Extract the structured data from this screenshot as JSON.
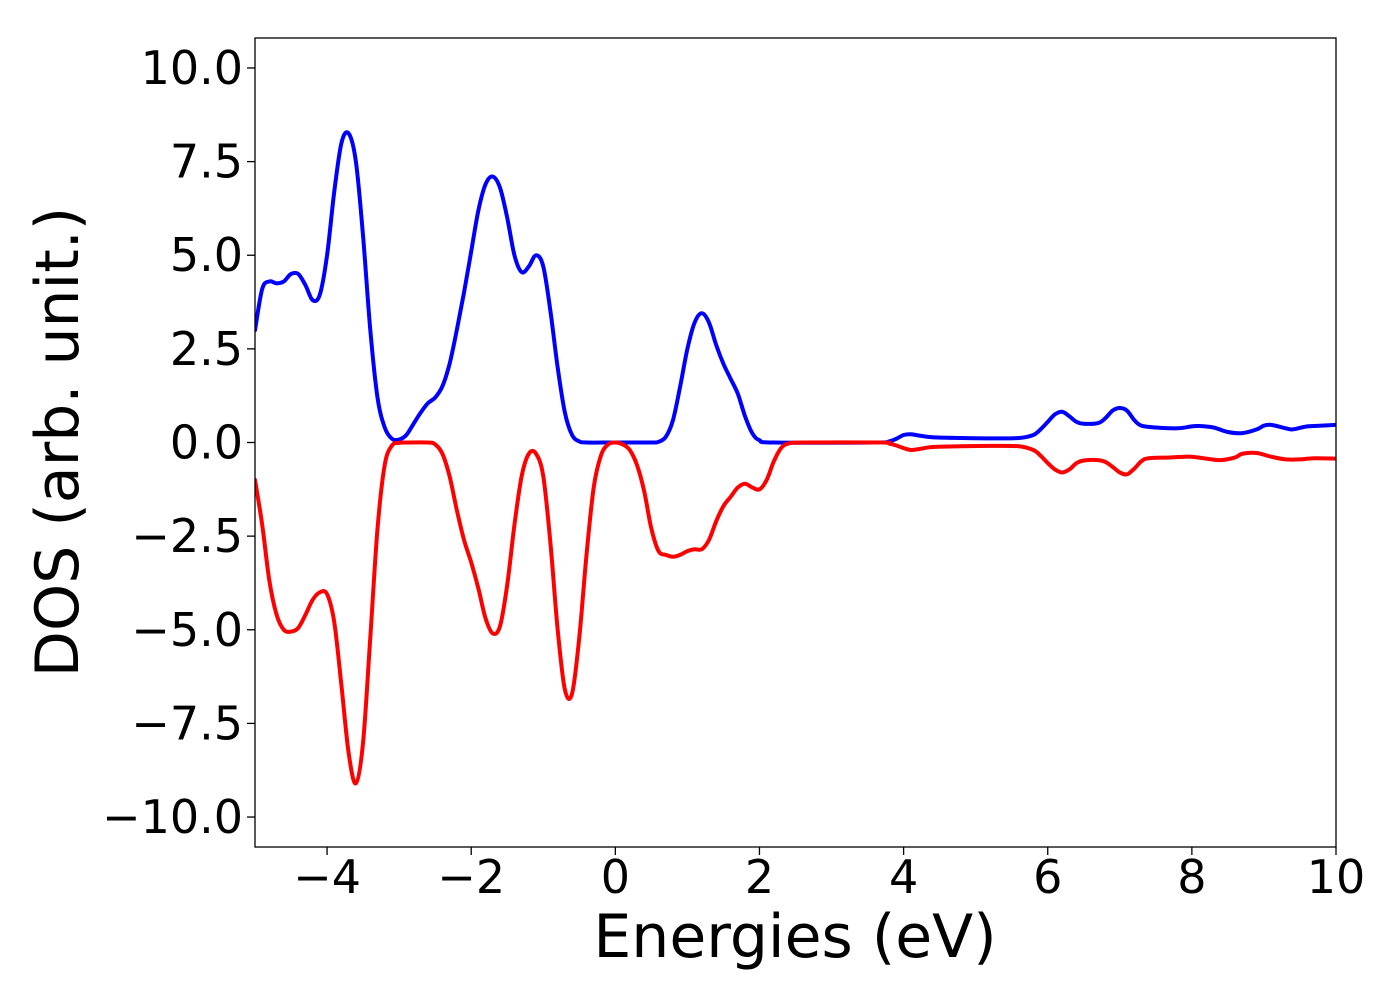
{
  "chart_data": {
    "type": "line",
    "title": "",
    "xlabel": "Energies (eV)",
    "ylabel": "DOS (arb. unit.)",
    "xlim": [
      -5,
      10
    ],
    "ylim": [
      -10.8,
      10.8
    ],
    "xticks": [
      -4,
      -2,
      0,
      2,
      4,
      6,
      8,
      10
    ],
    "xtick_labels": [
      "−4",
      "−2",
      "0",
      "2",
      "4",
      "6",
      "8",
      "10"
    ],
    "yticks": [
      10,
      7.5,
      5,
      2.5,
      0,
      -2.5,
      -5,
      -7.5,
      -10
    ],
    "ytick_labels": [
      "10.0",
      "7.5",
      "5.0",
      "2.5",
      "0.0",
      "−2.5",
      "−5.0",
      "−7.5",
      "−10.0"
    ],
    "grid": false,
    "legend": "none",
    "series": [
      {
        "color": "#0000ff",
        "points": [
          [
            -5,
            3.0
          ],
          [
            -4.9,
            4.1
          ],
          [
            -4.8,
            4.3
          ],
          [
            -4.7,
            4.25
          ],
          [
            -4.6,
            4.3
          ],
          [
            -4.5,
            4.5
          ],
          [
            -4.4,
            4.5
          ],
          [
            -4.3,
            4.2
          ],
          [
            -4.2,
            3.8
          ],
          [
            -4.1,
            3.95
          ],
          [
            -4.0,
            5.0
          ],
          [
            -3.9,
            6.7
          ],
          [
            -3.8,
            8.0
          ],
          [
            -3.7,
            8.25
          ],
          [
            -3.6,
            7.5
          ],
          [
            -3.5,
            5.5
          ],
          [
            -3.4,
            3.0
          ],
          [
            -3.3,
            1.2
          ],
          [
            -3.2,
            0.4
          ],
          [
            -3.1,
            0.1
          ],
          [
            -3.0,
            0.08
          ],
          [
            -2.9,
            0.2
          ],
          [
            -2.8,
            0.5
          ],
          [
            -2.7,
            0.8
          ],
          [
            -2.6,
            1.05
          ],
          [
            -2.5,
            1.2
          ],
          [
            -2.4,
            1.5
          ],
          [
            -2.3,
            2.1
          ],
          [
            -2.2,
            3.0
          ],
          [
            -2.1,
            4.0
          ],
          [
            -2.0,
            5.1
          ],
          [
            -1.9,
            6.2
          ],
          [
            -1.8,
            6.9
          ],
          [
            -1.7,
            7.1
          ],
          [
            -1.6,
            6.8
          ],
          [
            -1.5,
            6.0
          ],
          [
            -1.4,
            5.0
          ],
          [
            -1.3,
            4.55
          ],
          [
            -1.2,
            4.7
          ],
          [
            -1.1,
            5.0
          ],
          [
            -1.0,
            4.7
          ],
          [
            -0.9,
            3.5
          ],
          [
            -0.8,
            2.0
          ],
          [
            -0.7,
            0.8
          ],
          [
            -0.6,
            0.2
          ],
          [
            -0.5,
            0.03
          ],
          [
            -0.4,
            0.0
          ],
          [
            0.0,
            0.0
          ],
          [
            0.5,
            0.0
          ],
          [
            0.6,
            0.02
          ],
          [
            0.7,
            0.15
          ],
          [
            0.8,
            0.6
          ],
          [
            0.9,
            1.5
          ],
          [
            1.0,
            2.5
          ],
          [
            1.1,
            3.2
          ],
          [
            1.2,
            3.45
          ],
          [
            1.3,
            3.2
          ],
          [
            1.4,
            2.6
          ],
          [
            1.5,
            2.1
          ],
          [
            1.6,
            1.7
          ],
          [
            1.7,
            1.3
          ],
          [
            1.8,
            0.7
          ],
          [
            1.9,
            0.25
          ],
          [
            2.0,
            0.06
          ],
          [
            2.2,
            0.0
          ],
          [
            3.6,
            0.0
          ],
          [
            3.8,
            0.03
          ],
          [
            3.9,
            0.1
          ],
          [
            4.0,
            0.2
          ],
          [
            4.1,
            0.22
          ],
          [
            4.2,
            0.19
          ],
          [
            4.4,
            0.14
          ],
          [
            4.8,
            0.12
          ],
          [
            5.2,
            0.11
          ],
          [
            5.6,
            0.12
          ],
          [
            5.8,
            0.2
          ],
          [
            5.9,
            0.35
          ],
          [
            6.0,
            0.55
          ],
          [
            6.1,
            0.75
          ],
          [
            6.2,
            0.82
          ],
          [
            6.3,
            0.7
          ],
          [
            6.4,
            0.55
          ],
          [
            6.5,
            0.5
          ],
          [
            6.7,
            0.52
          ],
          [
            6.8,
            0.65
          ],
          [
            6.9,
            0.85
          ],
          [
            7.0,
            0.92
          ],
          [
            7.1,
            0.85
          ],
          [
            7.2,
            0.6
          ],
          [
            7.3,
            0.45
          ],
          [
            7.5,
            0.4
          ],
          [
            7.8,
            0.38
          ],
          [
            8.0,
            0.43
          ],
          [
            8.1,
            0.44
          ],
          [
            8.3,
            0.4
          ],
          [
            8.5,
            0.28
          ],
          [
            8.7,
            0.25
          ],
          [
            8.9,
            0.35
          ],
          [
            9.0,
            0.45
          ],
          [
            9.1,
            0.47
          ],
          [
            9.3,
            0.38
          ],
          [
            9.4,
            0.35
          ],
          [
            9.6,
            0.43
          ],
          [
            9.8,
            0.45
          ],
          [
            10.0,
            0.47
          ]
        ]
      },
      {
        "color": "#ff0000",
        "points": [
          [
            -5,
            -1.0
          ],
          [
            -4.9,
            -2.2
          ],
          [
            -4.8,
            -3.7
          ],
          [
            -4.7,
            -4.6
          ],
          [
            -4.6,
            -5.0
          ],
          [
            -4.5,
            -5.05
          ],
          [
            -4.4,
            -4.95
          ],
          [
            -4.3,
            -4.6
          ],
          [
            -4.2,
            -4.2
          ],
          [
            -4.1,
            -4.0
          ],
          [
            -4.0,
            -4.05
          ],
          [
            -3.9,
            -4.8
          ],
          [
            -3.8,
            -6.5
          ],
          [
            -3.7,
            -8.3
          ],
          [
            -3.6,
            -9.1
          ],
          [
            -3.5,
            -8.0
          ],
          [
            -3.4,
            -5.2
          ],
          [
            -3.3,
            -2.3
          ],
          [
            -3.2,
            -0.6
          ],
          [
            -3.1,
            -0.08
          ],
          [
            -3.0,
            -0.01
          ],
          [
            -2.9,
            0.0
          ],
          [
            -2.6,
            0.0
          ],
          [
            -2.5,
            -0.05
          ],
          [
            -2.4,
            -0.3
          ],
          [
            -2.3,
            -0.9
          ],
          [
            -2.2,
            -1.8
          ],
          [
            -2.1,
            -2.6
          ],
          [
            -2.0,
            -3.2
          ],
          [
            -1.9,
            -3.9
          ],
          [
            -1.8,
            -4.7
          ],
          [
            -1.7,
            -5.1
          ],
          [
            -1.6,
            -4.9
          ],
          [
            -1.5,
            -3.8
          ],
          [
            -1.4,
            -2.2
          ],
          [
            -1.3,
            -0.9
          ],
          [
            -1.2,
            -0.3
          ],
          [
            -1.1,
            -0.3
          ],
          [
            -1.0,
            -0.9
          ],
          [
            -0.9,
            -2.7
          ],
          [
            -0.8,
            -5.0
          ],
          [
            -0.7,
            -6.6
          ],
          [
            -0.6,
            -6.7
          ],
          [
            -0.5,
            -5.2
          ],
          [
            -0.4,
            -3.0
          ],
          [
            -0.3,
            -1.2
          ],
          [
            -0.2,
            -0.35
          ],
          [
            -0.1,
            -0.05
          ],
          [
            0.0,
            0.0
          ],
          [
            0.1,
            -0.05
          ],
          [
            0.2,
            -0.2
          ],
          [
            0.3,
            -0.6
          ],
          [
            0.4,
            -1.3
          ],
          [
            0.5,
            -2.3
          ],
          [
            0.6,
            -2.9
          ],
          [
            0.7,
            -3.0
          ],
          [
            0.8,
            -3.05
          ],
          [
            0.9,
            -3.0
          ],
          [
            1.0,
            -2.9
          ],
          [
            1.1,
            -2.85
          ],
          [
            1.2,
            -2.85
          ],
          [
            1.3,
            -2.6
          ],
          [
            1.4,
            -2.1
          ],
          [
            1.5,
            -1.7
          ],
          [
            1.6,
            -1.45
          ],
          [
            1.7,
            -1.2
          ],
          [
            1.8,
            -1.1
          ],
          [
            1.9,
            -1.2
          ],
          [
            2.0,
            -1.25
          ],
          [
            2.1,
            -1.0
          ],
          [
            2.2,
            -0.5
          ],
          [
            2.3,
            -0.15
          ],
          [
            2.4,
            -0.03
          ],
          [
            2.6,
            0.0
          ],
          [
            3.7,
            0.0
          ],
          [
            3.8,
            -0.03
          ],
          [
            3.9,
            -0.08
          ],
          [
            4.0,
            -0.15
          ],
          [
            4.1,
            -0.2
          ],
          [
            4.2,
            -0.18
          ],
          [
            4.4,
            -0.12
          ],
          [
            4.8,
            -0.1
          ],
          [
            5.2,
            -0.09
          ],
          [
            5.6,
            -0.1
          ],
          [
            5.8,
            -0.2
          ],
          [
            5.9,
            -0.35
          ],
          [
            6.0,
            -0.55
          ],
          [
            6.1,
            -0.72
          ],
          [
            6.2,
            -0.8
          ],
          [
            6.3,
            -0.72
          ],
          [
            6.4,
            -0.55
          ],
          [
            6.5,
            -0.48
          ],
          [
            6.7,
            -0.47
          ],
          [
            6.8,
            -0.52
          ],
          [
            6.9,
            -0.65
          ],
          [
            7.0,
            -0.8
          ],
          [
            7.1,
            -0.85
          ],
          [
            7.2,
            -0.7
          ],
          [
            7.3,
            -0.5
          ],
          [
            7.4,
            -0.42
          ],
          [
            7.7,
            -0.4
          ],
          [
            7.9,
            -0.38
          ],
          [
            8.0,
            -0.38
          ],
          [
            8.2,
            -0.43
          ],
          [
            8.4,
            -0.47
          ],
          [
            8.6,
            -0.4
          ],
          [
            8.7,
            -0.3
          ],
          [
            8.9,
            -0.28
          ],
          [
            9.1,
            -0.38
          ],
          [
            9.3,
            -0.45
          ],
          [
            9.5,
            -0.45
          ],
          [
            9.7,
            -0.42
          ],
          [
            10.0,
            -0.43
          ]
        ]
      }
    ]
  }
}
